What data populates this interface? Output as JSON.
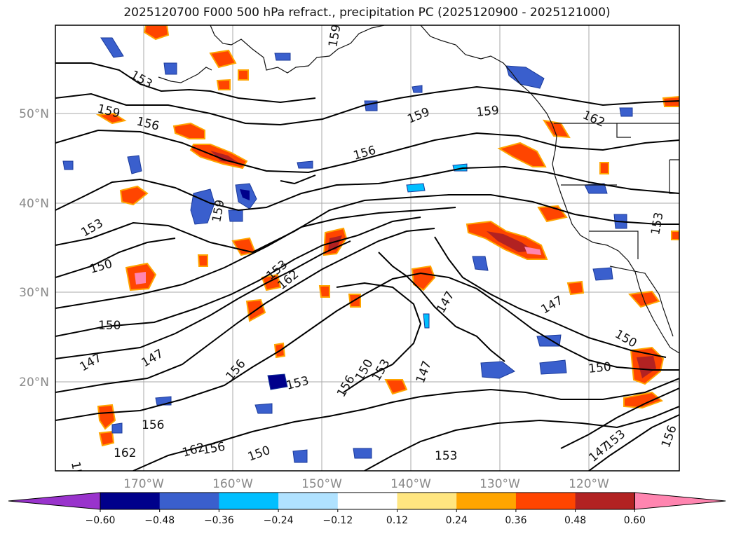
{
  "title": "2025120700 F000 500 hPa refract., precipitation PC (2025120900 - 2025121000)",
  "lat_labels": [
    "50°N",
    "40°N",
    "30°N",
    "20°N"
  ],
  "lon_labels": [
    "170°W",
    "160°W",
    "150°W",
    "140°W",
    "130°W",
    "120°W"
  ],
  "contour_labels": [
    "153",
    "159",
    "156",
    "159",
    "156",
    "159",
    "159",
    "162",
    "153",
    "153",
    "159",
    "150",
    "147",
    "147",
    "150",
    "147",
    "150",
    "147",
    "150",
    "153",
    "156",
    "153",
    "162",
    "156",
    "150",
    "147",
    "153",
    "156",
    "150",
    "147",
    "153",
    "156",
    "153",
    "162",
    "156",
    "162",
    "153"
  ],
  "colorbar": {
    "ticks": [
      "−0.60",
      "−0.48",
      "−0.36",
      "−0.24",
      "−0.12",
      "0.12",
      "0.24",
      "0.36",
      "0.48",
      "0.60"
    ],
    "colors": [
      "#9933cc",
      "#00008b",
      "#3a5fcd",
      "#00bfff",
      "#b0e2ff",
      "#ffffff",
      "#ffe680",
      "#ffa500",
      "#ff4500",
      "#b22222",
      "#ff85b0"
    ]
  },
  "colors": {
    "red": "#ff4500",
    "orange": "#ffa500",
    "yellow": "#ffe680",
    "darkred": "#b22222",
    "pink": "#ff85b0",
    "blue": "#3a5fcd",
    "navy": "#00008b",
    "cyan": "#00bfff",
    "lightblue": "#b0e2ff"
  }
}
